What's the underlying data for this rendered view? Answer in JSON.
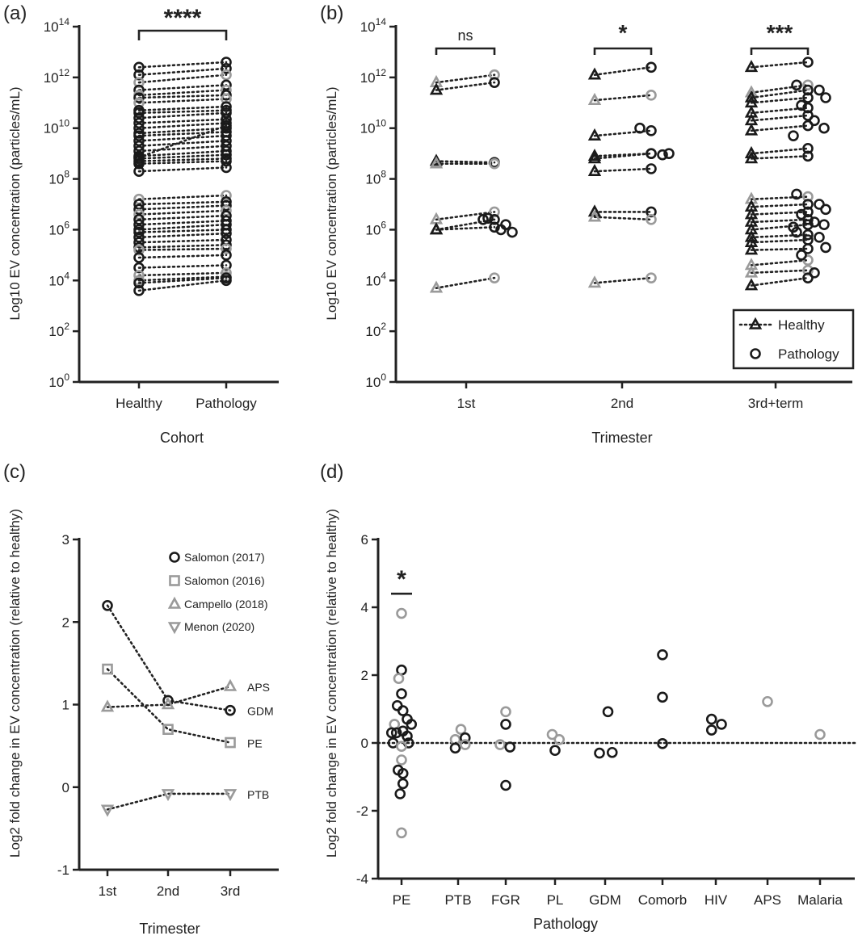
{
  "panels": {
    "a": {
      "label": "(a)",
      "ylabel": "Log10 EV concentration (particles/mL)",
      "xlabel": "Cohort",
      "categories": [
        "Healthy",
        "Pathology"
      ],
      "significance": "****"
    },
    "b": {
      "label": "(b)",
      "ylabel": "Log10 EV concentration (particles/mL)",
      "xlabel": "Trimester",
      "categories": [
        "1st",
        "2nd",
        "3rd+term"
      ],
      "significance": [
        "ns",
        "*",
        "***"
      ],
      "legend": [
        "Healthy",
        "Pathology"
      ]
    },
    "c": {
      "label": "(c)",
      "ylabel": "Log2 fold change in EV concentration (relative to healthy)",
      "xlabel": "Trimester",
      "categories": [
        "1st",
        "2nd",
        "3rd"
      ],
      "legend": [
        "Salomon (2017)",
        "Salomon (2016)",
        "Campello (2018)",
        "Menon  (2020)"
      ],
      "line_labels": [
        "APS",
        "GDM",
        "PE",
        "PTB"
      ]
    },
    "d": {
      "label": "(d)",
      "ylabel": "Log2 fold change in EV concentration (relative to healthy)",
      "xlabel": "Pathology",
      "categories": [
        "PE",
        "PTB",
        "FGR",
        "PL",
        "GDM",
        "Comorb",
        "HIV",
        "APS",
        "Malaria"
      ],
      "significance": "*"
    }
  },
  "chart_data": [
    {
      "panel": "a",
      "type": "scatter",
      "xlabel": "Cohort",
      "ylabel": "Log10 EV concentration (particles/mL)",
      "y_scale": "log10",
      "ylim": [
        0,
        14
      ],
      "y_ticks": [
        "10^0",
        "10^2",
        "10^4",
        "10^6",
        "10^8",
        "10^10",
        "10^12",
        "10^14"
      ],
      "categories": [
        "Healthy",
        "Pathology"
      ],
      "marker_colors": {
        "black": "#1a1a1a",
        "gray": "#9a9a9a"
      },
      "pairs_log10": [
        [
          12.4,
          12.6,
          "k"
        ],
        [
          12.1,
          12.35,
          "k"
        ],
        [
          11.8,
          12.1,
          "g"
        ],
        [
          11.5,
          11.7,
          "k"
        ],
        [
          11.3,
          11.5,
          "g"
        ],
        [
          11.2,
          11.3,
          "k"
        ],
        [
          11.0,
          11.15,
          "g"
        ],
        [
          10.7,
          10.85,
          "k"
        ],
        [
          10.6,
          10.7,
          "k"
        ],
        [
          10.4,
          10.6,
          "k"
        ],
        [
          10.2,
          10.35,
          "k"
        ],
        [
          10.0,
          10.2,
          "k"
        ],
        [
          9.8,
          10.0,
          "k"
        ],
        [
          9.7,
          9.85,
          "k"
        ],
        [
          9.5,
          9.7,
          "k"
        ],
        [
          9.3,
          9.5,
          "k"
        ],
        [
          9.1,
          9.3,
          "k"
        ],
        [
          8.9,
          9.1,
          "k"
        ],
        [
          8.85,
          10.1,
          "k"
        ],
        [
          8.8,
          8.95,
          "k"
        ],
        [
          8.7,
          8.8,
          "k"
        ],
        [
          8.6,
          8.7,
          "k"
        ],
        [
          8.3,
          8.45,
          "k"
        ],
        [
          7.2,
          7.35,
          "g"
        ],
        [
          7.0,
          7.1,
          "k"
        ],
        [
          6.8,
          6.95,
          "k"
        ],
        [
          6.6,
          6.75,
          "g"
        ],
        [
          6.4,
          6.55,
          "k"
        ],
        [
          6.2,
          6.35,
          "k"
        ],
        [
          6.0,
          6.2,
          "k"
        ],
        [
          5.9,
          6.0,
          "k"
        ],
        [
          5.7,
          5.85,
          "k"
        ],
        [
          5.5,
          5.6,
          "k"
        ],
        [
          5.3,
          5.4,
          "k"
        ],
        [
          5.2,
          5.25,
          "g"
        ],
        [
          4.9,
          5.0,
          "k"
        ],
        [
          4.5,
          4.6,
          "k"
        ],
        [
          4.2,
          4.3,
          "g"
        ],
        [
          4.0,
          4.15,
          "g"
        ],
        [
          3.9,
          4.1,
          "k"
        ],
        [
          3.6,
          4.0,
          "k"
        ]
      ]
    },
    {
      "panel": "b",
      "type": "scatter",
      "xlabel": "Trimester",
      "ylabel": "Log10 EV concentration (particles/mL)",
      "y_scale": "log10",
      "ylim": [
        0,
        14
      ],
      "categories": [
        "1st",
        "2nd",
        "3rd+term"
      ],
      "series": [
        {
          "name": "Healthy",
          "marker": "triangle"
        },
        {
          "name": "Pathology",
          "marker": "circle"
        }
      ],
      "groups_log10": [
        {
          "category": "1st",
          "pairs": [
            [
              11.8,
              12.1,
              "g"
            ],
            [
              11.5,
              11.8,
              "k"
            ],
            [
              8.7,
              8.65,
              "k"
            ],
            [
              8.6,
              8.6,
              "g"
            ],
            [
              6.4,
              6.7,
              "g"
            ],
            [
              6.0,
              6.4,
              "k"
            ],
            [
              6.0,
              6.1,
              "k"
            ],
            [
              3.7,
              4.1,
              "g"
            ]
          ],
          "extra_pathology": [
            6.4,
            6.2,
            5.9,
            6.45,
            6.0
          ]
        },
        {
          "category": "2nd",
          "pairs": [
            [
              12.1,
              12.4,
              "k"
            ],
            [
              11.1,
              11.3,
              "g"
            ],
            [
              9.7,
              9.9,
              "k"
            ],
            [
              8.9,
              9.0,
              "k"
            ],
            [
              8.8,
              9.0,
              "k"
            ],
            [
              8.3,
              8.4,
              "k"
            ],
            [
              6.7,
              6.7,
              "k"
            ],
            [
              6.5,
              6.4,
              "g"
            ],
            [
              3.9,
              4.1,
              "g"
            ]
          ],
          "extra_pathology": [
            10.0,
            8.95,
            9.0
          ]
        },
        {
          "category": "3rd+term",
          "pairs": [
            [
              12.4,
              12.6,
              "k"
            ],
            [
              11.4,
              11.7,
              "g"
            ],
            [
              11.2,
              11.5,
              "k"
            ],
            [
              11.0,
              11.2,
              "k"
            ],
            [
              10.6,
              10.8,
              "k"
            ],
            [
              10.3,
              10.5,
              "k"
            ],
            [
              9.9,
              10.1,
              "k"
            ],
            [
              9.0,
              9.2,
              "k"
            ],
            [
              8.8,
              8.9,
              "k"
            ],
            [
              7.2,
              7.3,
              "g"
            ],
            [
              6.9,
              7.0,
              "k"
            ],
            [
              6.6,
              6.7,
              "k"
            ],
            [
              6.3,
              6.4,
              "k"
            ],
            [
              6.0,
              6.2,
              "k"
            ],
            [
              5.7,
              5.8,
              "k"
            ],
            [
              5.5,
              5.6,
              "k"
            ],
            [
              5.2,
              5.25,
              "k"
            ],
            [
              4.6,
              4.8,
              "g"
            ],
            [
              4.3,
              4.4,
              "g"
            ],
            [
              3.8,
              4.1,
              "k"
            ]
          ],
          "extra_pathology": [
            11.7,
            11.5,
            11.2,
            10.9,
            10.3,
            10.0,
            9.7,
            7.4,
            7.0,
            6.8,
            6.6,
            6.3,
            6.2,
            6.1,
            5.9,
            5.7,
            5.3,
            5.0,
            4.3
          ]
        }
      ]
    },
    {
      "panel": "c",
      "type": "line",
      "xlabel": "Trimester",
      "ylabel": "Log2 fold change in EV concentration (relative to healthy)",
      "ylim": [
        -1,
        3
      ],
      "y_ticks": [
        -1,
        0,
        1,
        2,
        3
      ],
      "categories": [
        "1st",
        "2nd",
        "3rd"
      ],
      "series": [
        {
          "name": "Salomon (2017)",
          "label": "GDM",
          "marker": "circle",
          "color": "#1a1a1a",
          "values": [
            2.2,
            1.05,
            0.93
          ]
        },
        {
          "name": "Salomon (2016)",
          "label": "PE",
          "marker": "square",
          "color": "#9a9a9a",
          "values": [
            1.43,
            0.7,
            0.54
          ]
        },
        {
          "name": "Campello (2018)",
          "label": "APS",
          "marker": "triangle",
          "color": "#9a9a9a",
          "values": [
            0.97,
            1.0,
            1.22
          ]
        },
        {
          "name": "Menon  (2020)",
          "label": "PTB",
          "marker": "triangle-down",
          "color": "#9a9a9a",
          "values": [
            -0.27,
            -0.08,
            -0.08
          ]
        }
      ]
    },
    {
      "panel": "d",
      "type": "scatter",
      "xlabel": "Pathology",
      "ylabel": "Log2 fold change in EV concentration (relative to healthy)",
      "ylim": [
        -4,
        6
      ],
      "y_ticks": [
        -4,
        -2,
        0,
        2,
        4,
        6
      ],
      "reference_line": 0,
      "categories": [
        "PE",
        "PTB",
        "FGR",
        "PL",
        "GDM",
        "Comorb",
        "HIV",
        "APS",
        "Malaria"
      ],
      "points": [
        {
          "category": "PE",
          "values": [
            [
              0,
              3.82,
              "g"
            ],
            [
              0,
              2.15,
              "k"
            ],
            [
              -0.1,
              1.9,
              "g"
            ],
            [
              0,
              1.45,
              "k"
            ],
            [
              -0.15,
              1.1,
              "k"
            ],
            [
              0.05,
              0.95,
              "k"
            ],
            [
              0.2,
              0.7,
              "k"
            ],
            [
              0.35,
              0.55,
              "k"
            ],
            [
              -0.25,
              0.55,
              "g"
            ],
            [
              -0.35,
              0.3,
              "k"
            ],
            [
              -0.18,
              0.3,
              "k"
            ],
            [
              0.05,
              0.35,
              "k"
            ],
            [
              0.2,
              0.2,
              "k"
            ],
            [
              -0.3,
              0.0,
              "k"
            ],
            [
              0.25,
              0.0,
              "k"
            ],
            [
              0.0,
              -0.1,
              "g"
            ],
            [
              0.0,
              -0.5,
              "g"
            ],
            [
              -0.12,
              -0.8,
              "k"
            ],
            [
              0.05,
              -0.9,
              "k"
            ],
            [
              0.05,
              -1.2,
              "k"
            ],
            [
              -0.05,
              -1.5,
              "k"
            ],
            [
              0.0,
              -2.65,
              "g"
            ]
          ]
        },
        {
          "category": "PTB",
          "values": [
            [
              -0.1,
              0.1,
              "g"
            ],
            [
              0.1,
              0.4,
              "g"
            ],
            [
              0.25,
              0.15,
              "k"
            ],
            [
              -0.1,
              -0.15,
              "k"
            ],
            [
              0.25,
              -0.05,
              "g"
            ]
          ]
        },
        {
          "category": "FGR",
          "values": [
            [
              0.0,
              0.92,
              "g"
            ],
            [
              0.0,
              0.55,
              "k"
            ],
            [
              -0.2,
              -0.05,
              "g"
            ],
            [
              0.15,
              -0.12,
              "k"
            ],
            [
              0.0,
              -1.25,
              "k"
            ]
          ]
        },
        {
          "category": "PL",
          "values": [
            [
              -0.1,
              0.25,
              "g"
            ],
            [
              0.15,
              0.1,
              "g"
            ],
            [
              0.0,
              -0.22,
              "k"
            ]
          ]
        },
        {
          "category": "GDM",
          "values": [
            [
              0.1,
              0.92,
              "k"
            ],
            [
              -0.2,
              -0.3,
              "k"
            ],
            [
              0.25,
              -0.28,
              "k"
            ]
          ]
        },
        {
          "category": "Comorb",
          "values": [
            [
              0.0,
              2.6,
              "k"
            ],
            [
              0.0,
              1.35,
              "k"
            ],
            [
              0.0,
              -0.02,
              "k"
            ]
          ]
        },
        {
          "category": "HIV",
          "values": [
            [
              -0.15,
              0.7,
              "k"
            ],
            [
              -0.15,
              0.38,
              "k"
            ],
            [
              0.2,
              0.55,
              "k"
            ]
          ]
        },
        {
          "category": "APS",
          "values": [
            [
              0.0,
              1.22,
              "g"
            ]
          ]
        },
        {
          "category": "Malaria",
          "values": [
            [
              0.0,
              0.25,
              "g"
            ]
          ]
        }
      ]
    }
  ]
}
